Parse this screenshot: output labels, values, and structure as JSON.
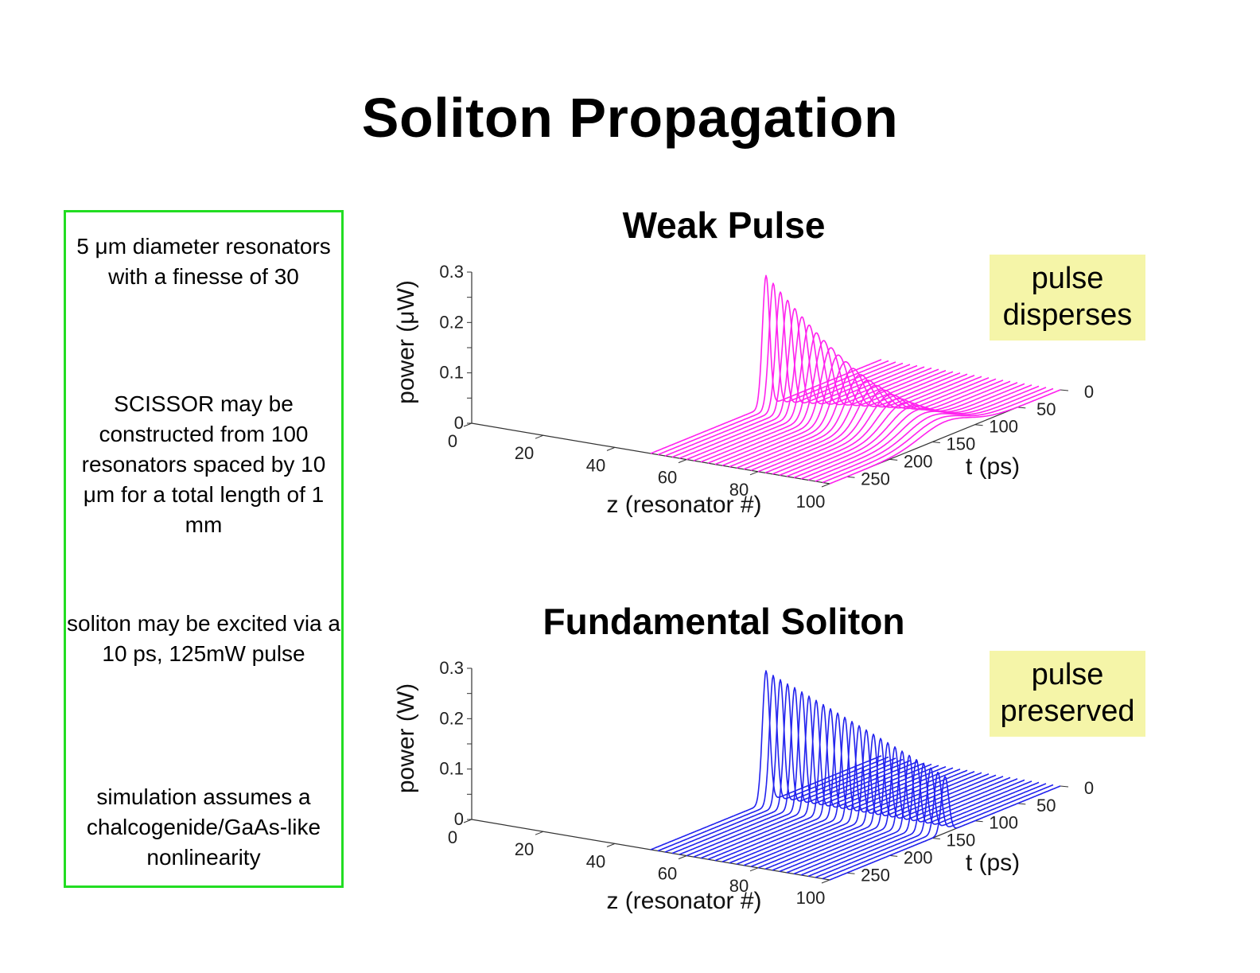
{
  "title": "Soliton Propagation",
  "info": [
    "5 μm diameter resonators with a finesse of 30",
    "SCISSOR may be constructed from 100 resonators spaced by 10 μm for a total length of 1 mm",
    "soliton may be excited via a 10 ps, 125mW pulse",
    "simulation assumes a chalcogenide/GaAs-like nonlinearity"
  ],
  "chart_data": [
    {
      "type": "line",
      "title": "Weak Pulse",
      "note": "pulse disperses",
      "xlabel": "z (resonator #)",
      "ylabel": "t (ps)",
      "zlabel": "power (μW)",
      "z_ticks": [
        "0",
        "20",
        "40",
        "60",
        "80",
        "100"
      ],
      "t_ticks": [
        "0",
        "50",
        "100",
        "150",
        "200",
        "250"
      ],
      "p_ticks": [
        "0",
        "0.1",
        "0.2",
        "0.3"
      ],
      "z_range": [
        0,
        100
      ],
      "t_range": [
        0,
        270
      ],
      "p_range": [
        0,
        0.3
      ],
      "pulse_center_t": 135,
      "color": "#ff22ee",
      "series": [
        {
          "z": 50,
          "peak": 0.26,
          "width": 6
        },
        {
          "z": 52,
          "peak": 0.247,
          "width": 6.8
        },
        {
          "z": 54,
          "peak": 0.232,
          "width": 7.6
        },
        {
          "z": 56,
          "peak": 0.218,
          "width": 8.5
        },
        {
          "z": 58,
          "peak": 0.204,
          "width": 9.5
        },
        {
          "z": 60,
          "peak": 0.19,
          "width": 10.6
        },
        {
          "z": 62,
          "peak": 0.176,
          "width": 11.7
        },
        {
          "z": 64,
          "peak": 0.163,
          "width": 12.9
        },
        {
          "z": 66,
          "peak": 0.15,
          "width": 14.1
        },
        {
          "z": 68,
          "peak": 0.138,
          "width": 15.3
        },
        {
          "z": 70,
          "peak": 0.126,
          "width": 16.6
        },
        {
          "z": 72,
          "peak": 0.115,
          "width": 18
        },
        {
          "z": 74,
          "peak": 0.104,
          "width": 19.4
        },
        {
          "z": 76,
          "peak": 0.094,
          "width": 20.8
        },
        {
          "z": 78,
          "peak": 0.085,
          "width": 22.3
        },
        {
          "z": 80,
          "peak": 0.077,
          "width": 23.8
        },
        {
          "z": 82,
          "peak": 0.07,
          "width": 25.4
        },
        {
          "z": 84,
          "peak": 0.063,
          "width": 27
        },
        {
          "z": 86,
          "peak": 0.057,
          "width": 28.7
        },
        {
          "z": 88,
          "peak": 0.052,
          "width": 30.4
        },
        {
          "z": 90,
          "peak": 0.047,
          "width": 32.2
        },
        {
          "z": 92,
          "peak": 0.043,
          "width": 34
        },
        {
          "z": 94,
          "peak": 0.039,
          "width": 35.8
        },
        {
          "z": 96,
          "peak": 0.036,
          "width": 37.7
        },
        {
          "z": 98,
          "peak": 0.033,
          "width": 39.6
        },
        {
          "z": 100,
          "peak": 0.03,
          "width": 41.5
        }
      ]
    },
    {
      "type": "line",
      "title": "Fundamental Soliton",
      "note": "pulse preserved",
      "xlabel": "z (resonator #)",
      "ylabel": "t (ps)",
      "zlabel": "power (W)",
      "z_ticks": [
        "0",
        "20",
        "40",
        "60",
        "80",
        "100"
      ],
      "t_ticks": [
        "0",
        "50",
        "100",
        "150",
        "200",
        "250"
      ],
      "p_ticks": [
        "0",
        "0.1",
        "0.2",
        "0.3"
      ],
      "z_range": [
        0,
        100
      ],
      "t_range": [
        0,
        270
      ],
      "p_range": [
        0,
        0.3
      ],
      "pulse_center_t": 135,
      "color": "#2222ee",
      "series": [
        {
          "z": 50,
          "peak": 0.262,
          "width": 6
        },
        {
          "z": 52,
          "peak": 0.255,
          "width": 6
        },
        {
          "z": 54,
          "peak": 0.249,
          "width": 6
        },
        {
          "z": 56,
          "peak": 0.243,
          "width": 6
        },
        {
          "z": 58,
          "peak": 0.238,
          "width": 6
        },
        {
          "z": 60,
          "peak": 0.232,
          "width": 6
        },
        {
          "z": 62,
          "peak": 0.226,
          "width": 6
        },
        {
          "z": 64,
          "peak": 0.22,
          "width": 6
        },
        {
          "z": 66,
          "peak": 0.214,
          "width": 6
        },
        {
          "z": 68,
          "peak": 0.208,
          "width": 6
        },
        {
          "z": 70,
          "peak": 0.202,
          "width": 6
        },
        {
          "z": 72,
          "peak": 0.196,
          "width": 6
        },
        {
          "z": 74,
          "peak": 0.19,
          "width": 6
        },
        {
          "z": 76,
          "peak": 0.184,
          "width": 6
        },
        {
          "z": 78,
          "peak": 0.178,
          "width": 6
        },
        {
          "z": 80,
          "peak": 0.172,
          "width": 6
        },
        {
          "z": 82,
          "peak": 0.166,
          "width": 6
        },
        {
          "z": 84,
          "peak": 0.16,
          "width": 6
        },
        {
          "z": 86,
          "peak": 0.154,
          "width": 6
        },
        {
          "z": 88,
          "peak": 0.148,
          "width": 6
        },
        {
          "z": 90,
          "peak": 0.142,
          "width": 6
        },
        {
          "z": 92,
          "peak": 0.136,
          "width": 6
        },
        {
          "z": 94,
          "peak": 0.13,
          "width": 6
        },
        {
          "z": 96,
          "peak": 0.124,
          "width": 6
        },
        {
          "z": 98,
          "peak": 0.118,
          "width": 6
        },
        {
          "z": 100,
          "peak": 0.112,
          "width": 6
        }
      ]
    }
  ]
}
